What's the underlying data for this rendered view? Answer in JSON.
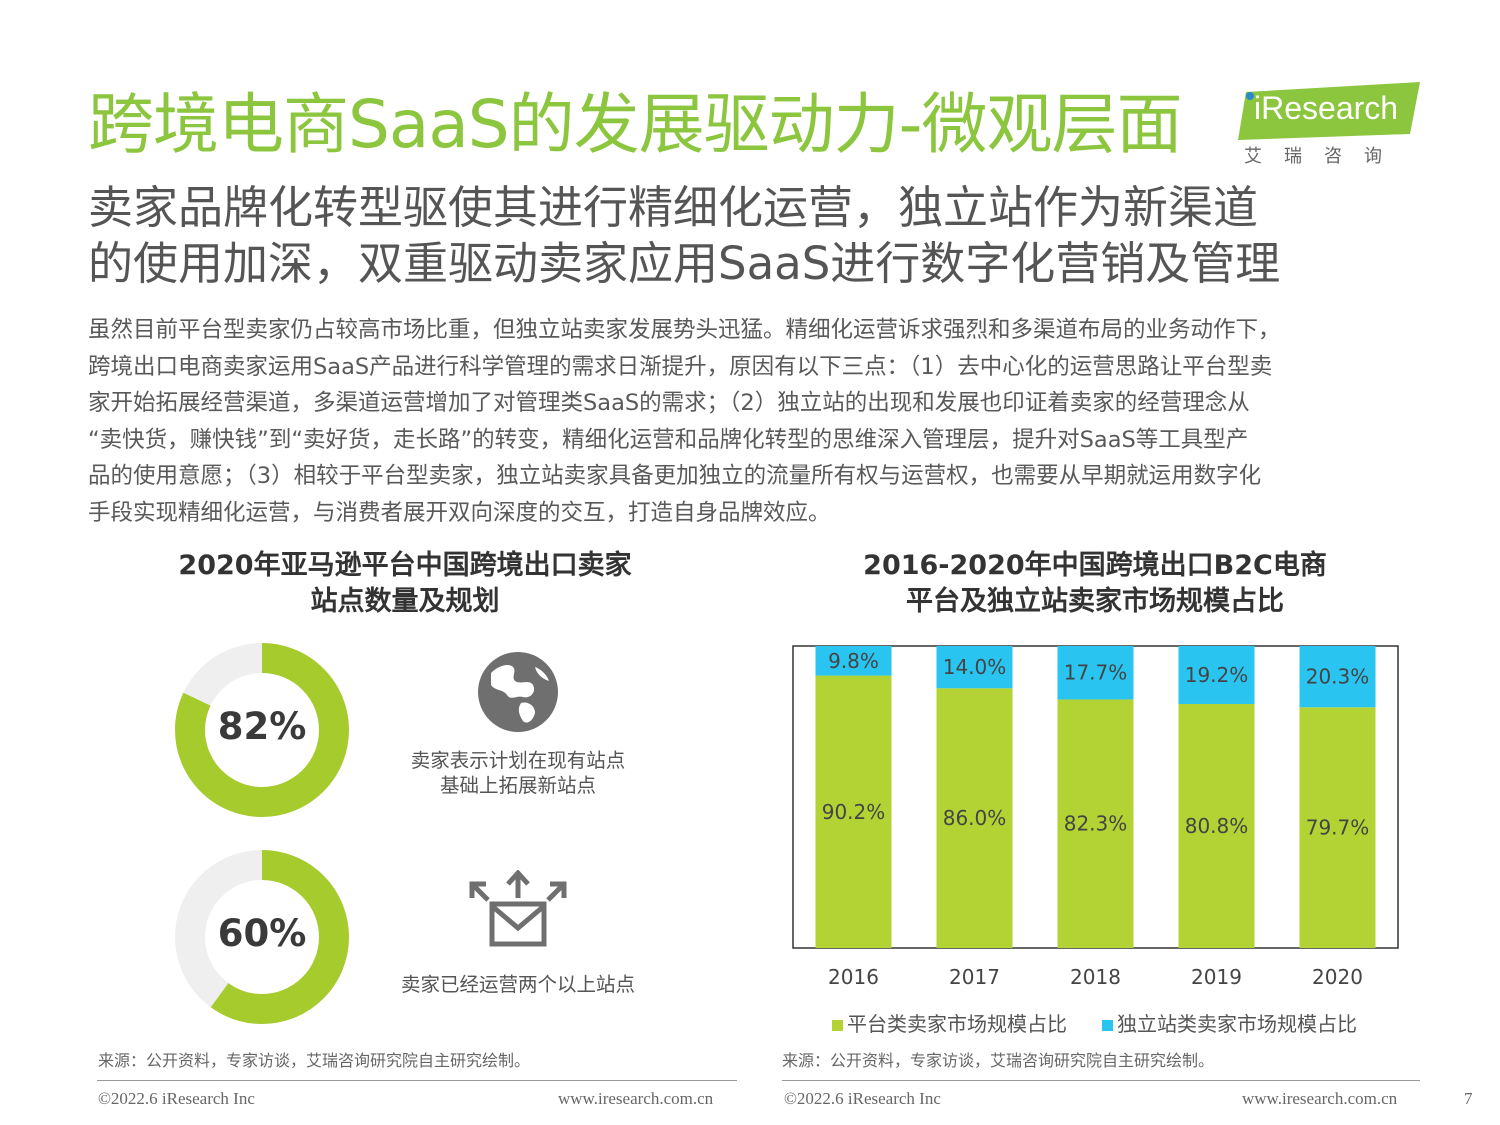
{
  "header": {
    "title": "跨境电商SaaS的发展驱动力-微观层面",
    "logo_text": "iResearch",
    "logo_cn": "艾瑞咨询"
  },
  "subtitle": {
    "lines": [
      "卖家品牌化转型驱使其进行精细化运营，独立站作为新渠道",
      "的使用加深，双重驱动卖家应用SaaS进行数字化营销及管理"
    ]
  },
  "body": {
    "lines": [
      "虽然目前平台型卖家仍占较高市场比重，但独立站卖家发展势头迅猛。精细化运营诉求强烈和多渠道布局的业务动作下，",
      "跨境出口电商卖家运用SaaS产品进行科学管理的需求日渐提升，原因有以下三点：（1）去中心化的运营思路让平台型卖",
      "家开始拓展经营渠道，多渠道运营增加了对管理类SaaS的需求；（2）独立站的出现和发展也印证着卖家的经营理念从",
      "“卖快货，赚快钱”到“卖好货，走长路”的转变，精细化运营和品牌化转型的思维深入管理层，提升对SaaS等工具型产",
      "品的使用意愿；（3）相较于平台型卖家，独立站卖家具备更加独立的流量所有权与运营权，也需要从早期就运用数字化",
      "手段实现精细化运营，与消费者展开双向深度的交互，打造自身品牌效应。"
    ]
  },
  "left_panel": {
    "title_lines": [
      "2020年亚马逊平台中国跨境出口卖家",
      "站点数量及规划"
    ],
    "donuts": [
      {
        "value": 82,
        "label": "82%",
        "caption_lines": [
          "卖家表示计划在现有站点",
          "基础上拓展新站点"
        ],
        "icon": "globe-icon"
      },
      {
        "value": 60,
        "label": "60%",
        "caption_lines": [
          "卖家已经运营两个以上站点"
        ],
        "icon": "mail-expand-icon"
      }
    ],
    "source": "来源：公开资料，专家访谈，艾瑞咨询研究院自主研究绘制。"
  },
  "right_panel": {
    "title_lines": [
      "2016-2020年中国跨境出口B2C电商",
      "平台及独立站卖家市场规模占比"
    ],
    "source": "来源：公开资料，专家访谈，艾瑞咨询研究院自主研究绘制。"
  },
  "chart_data": {
    "type": "bar",
    "stacked": true,
    "categories": [
      "2016",
      "2017",
      "2018",
      "2019",
      "2020"
    ],
    "series": [
      {
        "name": "平台类卖家市场规模占比",
        "values": [
          90.2,
          86.0,
          82.3,
          80.8,
          79.7
        ],
        "labels": [
          "90.2%",
          "86.0%",
          "82.3%",
          "80.8%",
          "79.7%"
        ],
        "color": "#b3d334"
      },
      {
        "name": "独立站类卖家市场规模占比",
        "values": [
          9.8,
          14.0,
          17.7,
          19.2,
          20.3
        ],
        "labels": [
          "9.8%",
          "14.0%",
          "17.7%",
          "19.2%",
          "20.3%"
        ],
        "color": "#29c5f0"
      }
    ],
    "ylim": [
      0,
      100
    ],
    "legend_position": "bottom"
  },
  "colors": {
    "accent": "#8cc63f",
    "donut_fill": "#a6cb2d",
    "donut_track": "#efefef",
    "icon": "#6f6f6f"
  },
  "footer": {
    "left_copyright": "©2022.6 iResearch Inc",
    "left_url": "www.iresearch.com.cn",
    "right_copyright": "©2022.6 iResearch Inc",
    "right_url": "www.iresearch.com.cn",
    "page_number": "7"
  }
}
